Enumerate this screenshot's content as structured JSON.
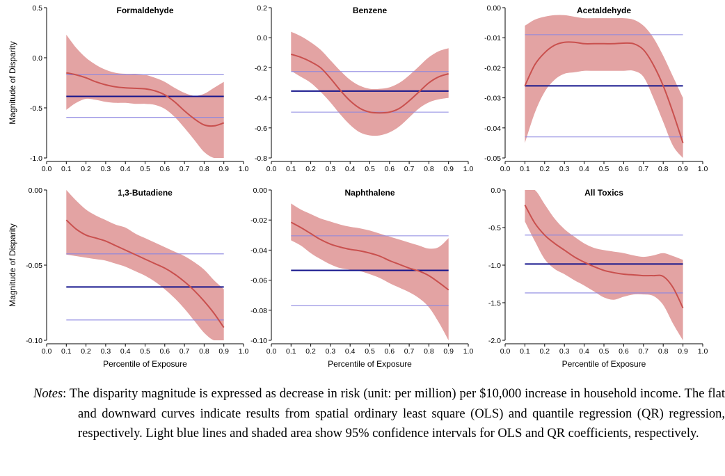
{
  "figure": {
    "y_axis_label": "Magnitude of Disparity",
    "x_axis_label": "Percentile of Exposure"
  },
  "notes": {
    "label": "Notes",
    "text": ": The disparity magnitude is expressed as decrease in risk (unit: per million) per $10,000 increase in household income. The flat and downward curves indicate results from spatial ordinary least square (OLS) and quantile regression (QR) regression, respectively. Light blue lines and shaded area show 95% confidence intervals for OLS and QR coefficients, respectively."
  },
  "colors": {
    "qr_curve": "#c9504e",
    "qr_band": "#e3a3a3",
    "ols_line": "#14148c",
    "ols_ci": "#8b86e0"
  },
  "chart_data": [
    {
      "type": "line",
      "title": "Formaldehyde",
      "xlim": [
        0.0,
        1.0
      ],
      "ylim": [
        -1.0,
        0.5
      ],
      "x_ticks": [
        "0.0",
        "0.1",
        "0.2",
        "0.3",
        "0.4",
        "0.5",
        "0.6",
        "0.7",
        "0.8",
        "0.9",
        "1.0"
      ],
      "y_ticks": [
        {
          "v": 0.5,
          "label": "0.5"
        },
        {
          "v": 0.0,
          "label": "0.0"
        },
        {
          "v": -0.5,
          "label": "-0.5"
        },
        {
          "v": -1.0,
          "label": "-1.0"
        }
      ],
      "ols": {
        "estimate": -0.385,
        "ci": [
          -0.595,
          -0.17
        ]
      },
      "qr": {
        "x": [
          0.1,
          0.15,
          0.2,
          0.25,
          0.3,
          0.35,
          0.4,
          0.45,
          0.5,
          0.55,
          0.6,
          0.65,
          0.7,
          0.75,
          0.8,
          0.85,
          0.9
        ],
        "y": [
          -0.15,
          -0.17,
          -0.2,
          -0.24,
          -0.27,
          -0.29,
          -0.3,
          -0.305,
          -0.31,
          -0.33,
          -0.37,
          -0.44,
          -0.53,
          -0.61,
          -0.67,
          -0.68,
          -0.65
        ],
        "upper": [
          0.23,
          0.1,
          0.0,
          -0.07,
          -0.12,
          -0.15,
          -0.16,
          -0.16,
          -0.17,
          -0.2,
          -0.24,
          -0.3,
          -0.35,
          -0.38,
          -0.36,
          -0.3,
          -0.24
        ],
        "lower": [
          -0.52,
          -0.45,
          -0.41,
          -0.42,
          -0.44,
          -0.45,
          -0.45,
          -0.46,
          -0.46,
          -0.47,
          -0.51,
          -0.59,
          -0.7,
          -0.82,
          -0.94,
          -1.0,
          -1.0
        ]
      }
    },
    {
      "type": "line",
      "title": "Benzene",
      "xlim": [
        0.0,
        1.0
      ],
      "ylim": [
        -0.8,
        0.2
      ],
      "x_ticks": [
        "0.0",
        "0.1",
        "0.2",
        "0.3",
        "0.4",
        "0.5",
        "0.6",
        "0.7",
        "0.8",
        "0.9",
        "1.0"
      ],
      "y_ticks": [
        {
          "v": 0.2,
          "label": "0.2"
        },
        {
          "v": 0.0,
          "label": "0.0"
        },
        {
          "v": -0.2,
          "label": "-0.2"
        },
        {
          "v": -0.4,
          "label": "-0.4"
        },
        {
          "v": -0.6,
          "label": "-0.6"
        },
        {
          "v": -0.8,
          "label": "-0.8"
        }
      ],
      "ols": {
        "estimate": -0.355,
        "ci": [
          -0.495,
          -0.225
        ]
      },
      "qr": {
        "x": [
          0.1,
          0.15,
          0.2,
          0.25,
          0.3,
          0.35,
          0.4,
          0.45,
          0.5,
          0.55,
          0.6,
          0.65,
          0.7,
          0.75,
          0.8,
          0.85,
          0.9
        ],
        "y": [
          -0.11,
          -0.13,
          -0.16,
          -0.2,
          -0.27,
          -0.35,
          -0.42,
          -0.47,
          -0.495,
          -0.5,
          -0.495,
          -0.47,
          -0.42,
          -0.36,
          -0.3,
          -0.26,
          -0.24
        ],
        "upper": [
          0.04,
          0.01,
          -0.03,
          -0.08,
          -0.15,
          -0.22,
          -0.28,
          -0.32,
          -0.34,
          -0.34,
          -0.33,
          -0.3,
          -0.25,
          -0.19,
          -0.13,
          -0.09,
          -0.07
        ],
        "lower": [
          -0.22,
          -0.26,
          -0.3,
          -0.36,
          -0.43,
          -0.51,
          -0.58,
          -0.63,
          -0.65,
          -0.65,
          -0.63,
          -0.59,
          -0.53,
          -0.47,
          -0.43,
          -0.41,
          -0.4
        ]
      }
    },
    {
      "type": "line",
      "title": "Acetaldehyde",
      "xlim": [
        0.0,
        1.0
      ],
      "ylim": [
        -0.05,
        0.0
      ],
      "x_ticks": [
        "0.0",
        "0.1",
        "0.2",
        "0.3",
        "0.4",
        "0.5",
        "0.6",
        "0.7",
        "0.8",
        "0.9",
        "1.0"
      ],
      "y_ticks": [
        {
          "v": 0.0,
          "label": "0.00"
        },
        {
          "v": -0.01,
          "label": "-0.01"
        },
        {
          "v": -0.02,
          "label": "-0.02"
        },
        {
          "v": -0.03,
          "label": "-0.03"
        },
        {
          "v": -0.04,
          "label": "-0.04"
        },
        {
          "v": -0.05,
          "label": "-0.05"
        }
      ],
      "ols": {
        "estimate": -0.026,
        "ci": [
          -0.043,
          -0.009
        ]
      },
      "qr": {
        "x": [
          0.1,
          0.15,
          0.2,
          0.25,
          0.3,
          0.35,
          0.4,
          0.45,
          0.5,
          0.55,
          0.6,
          0.65,
          0.7,
          0.75,
          0.8,
          0.85,
          0.9
        ],
        "y": [
          -0.026,
          -0.019,
          -0.015,
          -0.0125,
          -0.0115,
          -0.0115,
          -0.012,
          -0.012,
          -0.012,
          -0.012,
          -0.0118,
          -0.012,
          -0.014,
          -0.019,
          -0.026,
          -0.035,
          -0.045
        ],
        "upper": [
          -0.006,
          -0.004,
          -0.003,
          -0.0025,
          -0.0025,
          -0.003,
          -0.0035,
          -0.0035,
          -0.0035,
          -0.0035,
          -0.0035,
          -0.004,
          -0.006,
          -0.01,
          -0.016,
          -0.023,
          -0.03
        ],
        "lower": [
          -0.045,
          -0.035,
          -0.028,
          -0.024,
          -0.022,
          -0.0215,
          -0.021,
          -0.021,
          -0.021,
          -0.021,
          -0.021,
          -0.021,
          -0.023,
          -0.03,
          -0.038,
          -0.046,
          -0.05
        ]
      }
    },
    {
      "type": "line",
      "title": "1,3-Butadiene",
      "xlim": [
        0.0,
        1.0
      ],
      "ylim": [
        -0.1,
        0.0
      ],
      "x_ticks": [
        "0.0",
        "0.1",
        "0.2",
        "0.3",
        "0.4",
        "0.5",
        "0.6",
        "0.7",
        "0.8",
        "0.9",
        "1.0"
      ],
      "y_ticks": [
        {
          "v": 0.0,
          "label": "0.00"
        },
        {
          "v": -0.05,
          "label": "-0.05"
        },
        {
          "v": -0.1,
          "label": "-0.10"
        }
      ],
      "ols": {
        "estimate": -0.0645,
        "ci": [
          -0.0865,
          -0.0425
        ]
      },
      "qr": {
        "x": [
          0.1,
          0.15,
          0.2,
          0.25,
          0.3,
          0.35,
          0.4,
          0.45,
          0.5,
          0.55,
          0.6,
          0.65,
          0.7,
          0.75,
          0.8,
          0.85,
          0.9
        ],
        "y": [
          -0.02,
          -0.026,
          -0.03,
          -0.032,
          -0.034,
          -0.037,
          -0.04,
          -0.043,
          -0.046,
          -0.049,
          -0.052,
          -0.056,
          -0.061,
          -0.067,
          -0.074,
          -0.082,
          -0.0915
        ],
        "upper": [
          0.0,
          -0.007,
          -0.013,
          -0.017,
          -0.02,
          -0.023,
          -0.025,
          -0.029,
          -0.032,
          -0.035,
          -0.038,
          -0.041,
          -0.044,
          -0.048,
          -0.053,
          -0.06,
          -0.066
        ],
        "lower": [
          -0.043,
          -0.044,
          -0.045,
          -0.046,
          -0.047,
          -0.049,
          -0.051,
          -0.054,
          -0.057,
          -0.061,
          -0.066,
          -0.072,
          -0.079,
          -0.087,
          -0.095,
          -0.1,
          -0.1
        ]
      }
    },
    {
      "type": "line",
      "title": "Naphthalene",
      "xlim": [
        0.0,
        1.0
      ],
      "ylim": [
        -0.1,
        0.0
      ],
      "x_ticks": [
        "0.0",
        "0.1",
        "0.2",
        "0.3",
        "0.4",
        "0.5",
        "0.6",
        "0.7",
        "0.8",
        "0.9",
        "1.0"
      ],
      "y_ticks": [
        {
          "v": 0.0,
          "label": "0.00"
        },
        {
          "v": -0.02,
          "label": "-0.02"
        },
        {
          "v": -0.04,
          "label": "-0.04"
        },
        {
          "v": -0.06,
          "label": "-0.06"
        },
        {
          "v": -0.08,
          "label": "-0.08"
        },
        {
          "v": -0.1,
          "label": "-0.10"
        }
      ],
      "ols": {
        "estimate": -0.0535,
        "ci": [
          -0.077,
          -0.0305
        ]
      },
      "qr": {
        "x": [
          0.1,
          0.15,
          0.2,
          0.25,
          0.3,
          0.35,
          0.4,
          0.45,
          0.5,
          0.55,
          0.6,
          0.65,
          0.7,
          0.75,
          0.8,
          0.85,
          0.9
        ],
        "y": [
          -0.0215,
          -0.025,
          -0.029,
          -0.033,
          -0.036,
          -0.038,
          -0.0395,
          -0.0405,
          -0.042,
          -0.044,
          -0.047,
          -0.0495,
          -0.052,
          -0.054,
          -0.057,
          -0.0615,
          -0.0665
        ],
        "upper": [
          -0.009,
          -0.013,
          -0.016,
          -0.019,
          -0.021,
          -0.023,
          -0.0245,
          -0.0255,
          -0.027,
          -0.029,
          -0.031,
          -0.033,
          -0.035,
          -0.037,
          -0.039,
          -0.038,
          -0.032
        ],
        "lower": [
          -0.0335,
          -0.037,
          -0.042,
          -0.046,
          -0.0495,
          -0.052,
          -0.053,
          -0.054,
          -0.056,
          -0.0585,
          -0.062,
          -0.065,
          -0.068,
          -0.072,
          -0.078,
          -0.088,
          -0.1
        ]
      }
    },
    {
      "type": "line",
      "title": "All Toxics",
      "xlim": [
        0.0,
        1.0
      ],
      "ylim": [
        -2.0,
        0.0
      ],
      "x_ticks": [
        "0.0",
        "0.1",
        "0.2",
        "0.3",
        "0.4",
        "0.5",
        "0.6",
        "0.7",
        "0.8",
        "0.9",
        "1.0"
      ],
      "y_ticks": [
        {
          "v": 0.0,
          "label": "0.0"
        },
        {
          "v": -0.5,
          "label": "-0.5"
        },
        {
          "v": -1.0,
          "label": "-1.0"
        },
        {
          "v": -1.5,
          "label": "-1.5"
        },
        {
          "v": -2.0,
          "label": "-2.0"
        }
      ],
      "ols": {
        "estimate": -0.985,
        "ci": [
          -1.37,
          -0.6
        ]
      },
      "qr": {
        "x": [
          0.1,
          0.15,
          0.2,
          0.25,
          0.3,
          0.35,
          0.4,
          0.45,
          0.5,
          0.55,
          0.6,
          0.65,
          0.7,
          0.75,
          0.8,
          0.85,
          0.9
        ],
        "y": [
          -0.2,
          -0.44,
          -0.6,
          -0.71,
          -0.8,
          -0.89,
          -0.96,
          -1.02,
          -1.07,
          -1.1,
          -1.12,
          -1.13,
          -1.14,
          -1.14,
          -1.15,
          -1.3,
          -1.57
        ],
        "upper": [
          0.0,
          0.0,
          -0.19,
          -0.38,
          -0.52,
          -0.62,
          -0.71,
          -0.77,
          -0.8,
          -0.82,
          -0.84,
          -0.87,
          -0.89,
          -0.87,
          -0.84,
          -0.88,
          -0.93
        ],
        "lower": [
          -0.42,
          -0.68,
          -0.92,
          -1.05,
          -1.12,
          -1.2,
          -1.27,
          -1.35,
          -1.43,
          -1.46,
          -1.42,
          -1.39,
          -1.39,
          -1.41,
          -1.53,
          -1.78,
          -2.0
        ]
      }
    }
  ]
}
